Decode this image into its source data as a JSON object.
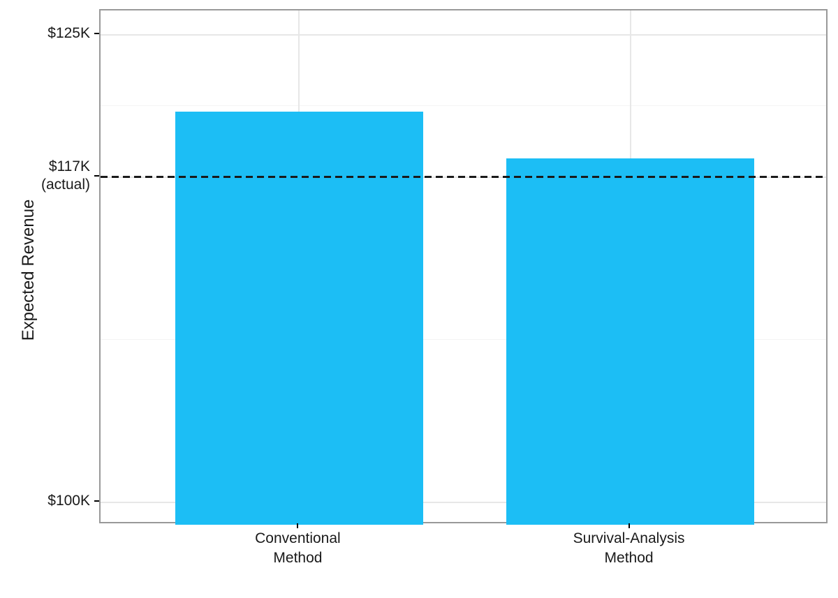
{
  "figure": {
    "background": "#FFFFFF"
  },
  "chart_data": {
    "type": "bar",
    "title": "",
    "xlabel": "",
    "ylabel": "Expected Revenue",
    "categories": [
      {
        "lines": [
          "Conventional",
          "Method"
        ],
        "slug": "conventional-method"
      },
      {
        "lines": [
          "Survival-Analysis",
          "Method"
        ],
        "slug": "survival-analysis-method"
      }
    ],
    "values": [
      120.9,
      118.4
    ],
    "values_unit": "$K",
    "ylim": [
      98.8,
      126.3
    ],
    "y_ticks": [
      {
        "value": 125,
        "lines": [
          "$125K"
        ]
      },
      {
        "value": 117.4,
        "lines": [
          "$117K",
          "(actual)"
        ]
      },
      {
        "value": 100,
        "lines": [
          "$100K"
        ]
      }
    ],
    "reference_line": {
      "value": 117.4,
      "label": "$117K (actual)",
      "style": "dashed",
      "color": "#1A1A1A"
    },
    "bar_color": "#1CBEF5",
    "grid": {
      "major_color": "#E7E7E7",
      "minor_color": "#F4F4F4",
      "minor_at_midpoints": true
    },
    "panel_border_color": "#999999",
    "legend": null
  }
}
